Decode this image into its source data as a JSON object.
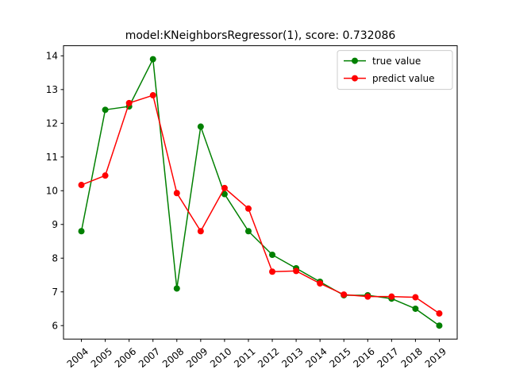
{
  "chart_data": {
    "type": "line",
    "title": "model:KNeighborsRegressor(1), score: 0.732086",
    "xlabel": "",
    "ylabel": "",
    "categories": [
      "2004",
      "2005",
      "2006",
      "2007",
      "2008",
      "2009",
      "2010",
      "2011",
      "2012",
      "2013",
      "2014",
      "2015",
      "2016",
      "2017",
      "2018",
      "2019"
    ],
    "ylim": [
      5.6,
      14.3
    ],
    "yticks": [
      6,
      7,
      8,
      9,
      10,
      11,
      12,
      13,
      14
    ],
    "x_tick_rotation": 40,
    "grid": false,
    "legend_position": "top-right",
    "series": [
      {
        "name": "true value",
        "color": "#008000",
        "marker": "circle",
        "values": [
          8.8,
          12.4,
          12.5,
          13.9,
          7.1,
          11.9,
          9.9,
          8.8,
          8.1,
          7.7,
          7.3,
          6.9,
          6.9,
          6.8,
          6.5,
          6.0
        ]
      },
      {
        "name": "predict value",
        "color": "#ff0000",
        "marker": "circle",
        "values": [
          10.17,
          10.45,
          12.6,
          12.83,
          9.93,
          8.8,
          10.08,
          9.47,
          7.6,
          7.62,
          7.25,
          6.92,
          6.86,
          6.86,
          6.84,
          6.36
        ]
      }
    ]
  }
}
